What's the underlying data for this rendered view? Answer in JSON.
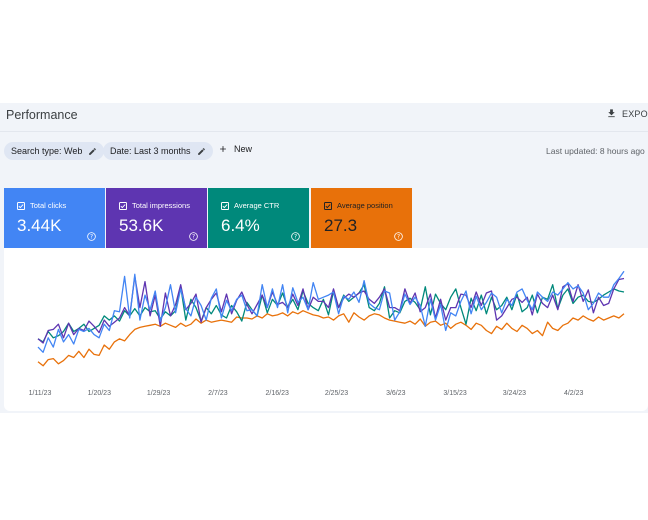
{
  "header": {
    "title": "Performance",
    "export_label": "EXPORT"
  },
  "filters": {
    "search_type": "Search type: Web",
    "date": "Date: Last 3 months",
    "new_label": "New",
    "last_updated": "Last updated: 8 hours ago"
  },
  "metrics": [
    {
      "label": "Total clicks",
      "value": "3.44K",
      "color": "#4285f4"
    },
    {
      "label": "Total impressions",
      "value": "53.6K",
      "color": "#5e35b1"
    },
    {
      "label": "Average CTR",
      "value": "6.4%",
      "color": "#00897b"
    },
    {
      "label": "Average position",
      "value": "27.3",
      "color": "#e8710a"
    }
  ],
  "chart_data": {
    "type": "line",
    "x_ticks": [
      "1/11/23",
      "1/20/23",
      "1/29/23",
      "2/7/23",
      "2/16/23",
      "2/25/23",
      "3/6/23",
      "3/15/23",
      "3/24/23",
      "4/2/23"
    ],
    "y_scale": "normalized 0-100 per series (no y-axis shown)",
    "grid": false,
    "series": [
      {
        "name": "Total clicks",
        "color": "#4285f4",
        "values": [
          22,
          17,
          31,
          22,
          39,
          27,
          34,
          25,
          39,
          37,
          40,
          34,
          31,
          44,
          38,
          57,
          56,
          90,
          50,
          92,
          48,
          72,
          58,
          76,
          47,
          60,
          82,
          55,
          78,
          59,
          52,
          70,
          62,
          48,
          69,
          78,
          50,
          67,
          57,
          68,
          72,
          57,
          58,
          52,
          82,
          60,
          78,
          60,
          82,
          55,
          79,
          65,
          70,
          58,
          84,
          68,
          70,
          72,
          75,
          54,
          71,
          68,
          75,
          65,
          86,
          64,
          60,
          58,
          76,
          74,
          48,
          56,
          73,
          63,
          70,
          62,
          42,
          68,
          48,
          63,
          38,
          55,
          52,
          66,
          76,
          54,
          71,
          58,
          65,
          74,
          70,
          55,
          68,
          62,
          75,
          78,
          67,
          58,
          75,
          70,
          66,
          75,
          72,
          78,
          84,
          78,
          81,
          74,
          58,
          64,
          74,
          70,
          70,
          82,
          88,
          95
        ]
      },
      {
        "name": "Total impressions",
        "color": "#5e35b1",
        "values": [
          30,
          26,
          38,
          39,
          44,
          31,
          45,
          34,
          40,
          38,
          47,
          42,
          36,
          48,
          42,
          46,
          50,
          60,
          52,
          90,
          60,
          85,
          52,
          72,
          42,
          74,
          52,
          63,
          82,
          58,
          64,
          73,
          46,
          60,
          68,
          74,
          56,
          73,
          54,
          67,
          75,
          63,
          54,
          63,
          72,
          60,
          75,
          63,
          65,
          60,
          73,
          62,
          78,
          58,
          70,
          66,
          66,
          60,
          78,
          60,
          69,
          73,
          70,
          74,
          76,
          68,
          64,
          70,
          78,
          60,
          60,
          57,
          78,
          64,
          74,
          56,
          60,
          73,
          50,
          68,
          48,
          60,
          60,
          73,
          72,
          60,
          75,
          62,
          74,
          76,
          48,
          52,
          60,
          68,
          70,
          65,
          70,
          53,
          73,
          64,
          60,
          72,
          58,
          80,
          83,
          66,
          82,
          66,
          77,
          55,
          70,
          62,
          64,
          78,
          87,
          88
        ]
      },
      {
        "name": "Average CTR",
        "color": "#00897b",
        "values": [
          30,
          27,
          37,
          31,
          33,
          37,
          45,
          37,
          40,
          44,
          37,
          40,
          43,
          52,
          48,
          52,
          47,
          57,
          52,
          59,
          52,
          60,
          56,
          57,
          49,
          56,
          52,
          57,
          80,
          48,
          68,
          60,
          47,
          60,
          54,
          62,
          53,
          50,
          62,
          56,
          47,
          65,
          58,
          52,
          72,
          55,
          68,
          62,
          74,
          60,
          68,
          58,
          76,
          64,
          60,
          57,
          68,
          53,
          76,
          60,
          72,
          66,
          70,
          74,
          82,
          60,
          57,
          64,
          80,
          50,
          57,
          55,
          66,
          69,
          65,
          58,
          80,
          53,
          73,
          64,
          58,
          70,
          78,
          60,
          44,
          69,
          57,
          72,
          54,
          70,
          58,
          62,
          70,
          58,
          73,
          56,
          60,
          72,
          55,
          70,
          68,
          82,
          59,
          72,
          78,
          64,
          70,
          72,
          66,
          65,
          68,
          72,
          75,
          78,
          76,
          75
        ]
      },
      {
        "name": "Average position",
        "color": "#e8710a",
        "values": [
          8,
          4,
          10,
          11,
          6,
          9,
          14,
          12,
          18,
          12,
          20,
          15,
          14,
          24,
          20,
          27,
          30,
          28,
          34,
          39,
          41,
          42,
          43,
          44,
          42,
          45,
          43,
          41,
          45,
          42,
          44,
          49,
          45,
          48,
          46,
          47,
          48,
          47,
          46,
          51,
          50,
          50,
          49,
          52,
          50,
          54,
          52,
          53,
          55,
          52,
          56,
          54,
          57,
          55,
          53,
          52,
          50,
          51,
          48,
          52,
          54,
          46,
          55,
          51,
          48,
          52,
          54,
          53,
          50,
          48,
          47,
          46,
          45,
          47,
          44,
          49,
          42,
          46,
          47,
          43,
          45,
          40,
          44,
          46,
          43,
          39,
          45,
          43,
          38,
          35,
          42,
          39,
          45,
          40,
          37,
          43,
          40,
          35,
          38,
          33,
          46,
          40,
          38,
          43,
          45,
          50,
          48,
          52,
          49,
          47,
          51,
          48,
          50,
          52,
          50,
          54
        ]
      }
    ]
  }
}
